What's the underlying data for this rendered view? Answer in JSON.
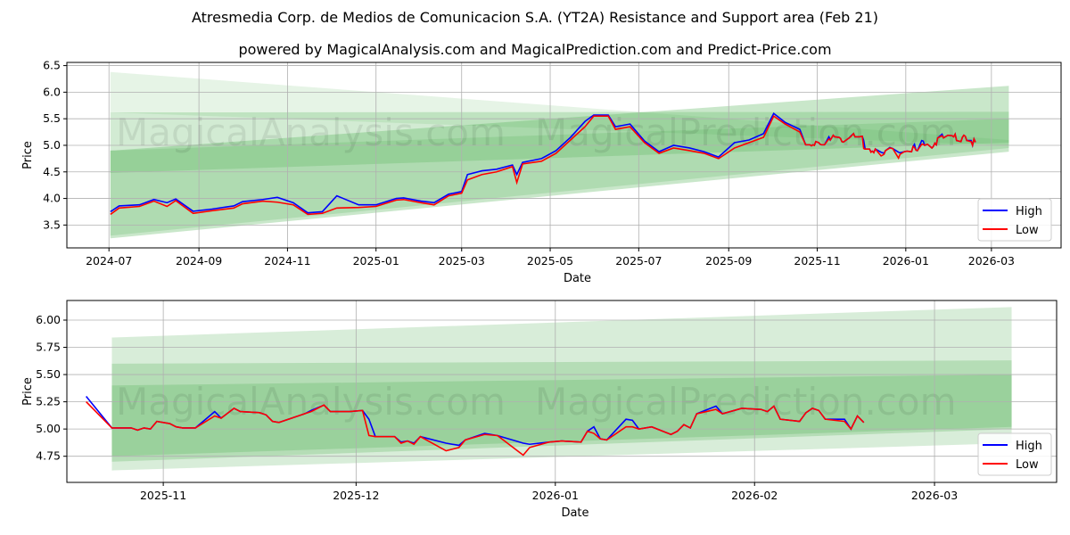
{
  "title": "Atresmedia Corp. de Medios de Comunicacion S.A. (YT2A) Resistance and Support area (Feb 21)",
  "subtitle": "powered by MagicalAnalysis.com and MagicalPrediction.com and Predict-Price.com",
  "watermarks": [
    "MagicalAnalysis.com",
    "MagicalPrediction.com"
  ],
  "colors": {
    "high": "#0000ff",
    "low": "#ff0000",
    "band": "#4caf50"
  },
  "chart_data": [
    {
      "type": "line",
      "xlabel": "Date",
      "ylabel": "Price",
      "xlim": [
        "2024-06-02",
        "2026-04-18"
      ],
      "ylim": [
        3.07,
        6.56
      ],
      "yticks": [
        "3.5",
        "4.0",
        "4.5",
        "5.0",
        "5.5",
        "6.0",
        "6.5"
      ],
      "xticks": [
        "2024-07",
        "2024-09",
        "2024-11",
        "2025-01",
        "2025-03",
        "2025-05",
        "2025-07",
        "2025-09",
        "2025-11",
        "2026-01",
        "2026-03"
      ],
      "legend": {
        "position": "lower-right",
        "entries": [
          "High",
          "Low"
        ]
      },
      "bands": [
        {
          "start": "2024-07-02",
          "end": "2026-03-13",
          "start_range": [
            5.62,
            6.38
          ],
          "end_range": [
            5.0,
            5.1
          ],
          "alpha": 0.14
        },
        {
          "start": "2024-07-02",
          "end": "2026-03-13",
          "start_range": [
            3.25,
            4.9
          ],
          "end_range": [
            4.88,
            6.12
          ],
          "alpha": 0.3
        },
        {
          "start": "2024-07-02",
          "end": "2026-03-13",
          "start_range": [
            4.48,
            5.62
          ],
          "end_range": [
            5.05,
            5.63
          ],
          "alpha": 0.25
        },
        {
          "start": "2024-07-02",
          "end": "2026-03-13",
          "start_range": [
            3.3,
            4.9
          ],
          "end_range": [
            4.95,
            5.5
          ],
          "alpha": 0.2
        }
      ]
    },
    {
      "type": "line",
      "xlabel": "Date",
      "ylabel": "Price",
      "xlim": [
        "2025-10-17",
        "2026-03-20"
      ],
      "ylim": [
        4.51,
        6.18
      ],
      "yticks": [
        "4.75",
        "5.00",
        "5.25",
        "5.50",
        "5.75",
        "6.00"
      ],
      "xticks": [
        "2025-11",
        "2025-12",
        "2026-01",
        "2026-02",
        "2026-03"
      ],
      "legend": {
        "position": "lower-right",
        "entries": [
          "High",
          "Low"
        ]
      },
      "bands": [
        {
          "start": "2025-10-24",
          "end": "2026-03-13",
          "start_range": [
            4.62,
            5.84
          ],
          "end_range": [
            4.87,
            6.12
          ],
          "alpha": 0.22
        },
        {
          "start": "2025-10-24",
          "end": "2026-03-13",
          "start_range": [
            4.7,
            5.6
          ],
          "end_range": [
            5.0,
            5.63
          ],
          "alpha": 0.25
        },
        {
          "start": "2025-10-24",
          "end": "2026-03-13",
          "start_range": [
            4.75,
            5.4
          ],
          "end_range": [
            5.02,
            5.5
          ],
          "alpha": 0.25
        }
      ]
    }
  ],
  "series": {
    "dates": [
      "2024-07-02",
      "2024-07-08",
      "2024-07-22",
      "2024-08-01",
      "2024-08-10",
      "2024-08-16",
      "2024-08-28",
      "2024-09-10",
      "2024-09-25",
      "2024-10-01",
      "2024-10-15",
      "2024-10-25",
      "2024-11-05",
      "2024-11-15",
      "2024-11-25",
      "2024-12-05",
      "2024-12-20",
      "2025-01-01",
      "2025-01-15",
      "2025-01-20",
      "2025-02-01",
      "2025-02-10",
      "2025-02-20",
      "2025-03-01",
      "2025-03-05",
      "2025-03-15",
      "2025-03-25",
      "2025-04-05",
      "2025-04-08",
      "2025-04-12",
      "2025-04-25",
      "2025-05-05",
      "2025-05-15",
      "2025-05-25",
      "2025-05-31",
      "2025-06-10",
      "2025-06-15",
      "2025-06-25",
      "2025-07-05",
      "2025-07-15",
      "2025-07-25",
      "2025-08-05",
      "2025-08-15",
      "2025-08-25",
      "2025-09-05",
      "2025-09-15",
      "2025-09-25",
      "2025-10-02",
      "2025-10-10",
      "2025-10-20",
      "2025-10-24",
      "2025-10-27",
      "2025-10-28",
      "2025-10-29",
      "2025-10-30",
      "2025-10-31",
      "2025-11-02",
      "2025-11-03",
      "2025-11-04",
      "2025-11-06",
      "2025-11-09",
      "2025-11-10",
      "2025-11-12",
      "2025-11-13",
      "2025-11-16",
      "2025-11-17",
      "2025-11-18",
      "2025-11-19",
      "2025-11-23",
      "2025-11-24",
      "2025-11-26",
      "2025-11-27",
      "2025-11-30",
      "2025-12-02",
      "2025-12-03",
      "2025-12-04",
      "2025-12-07",
      "2025-12-08",
      "2025-12-09",
      "2025-12-10",
      "2025-12-11",
      "2025-12-15",
      "2025-12-17",
      "2025-12-18",
      "2025-12-21",
      "2025-12-23",
      "2025-12-27",
      "2025-12-28",
      "2025-12-31",
      "2026-01-02",
      "2026-01-05",
      "2026-01-06",
      "2026-01-07",
      "2026-01-08",
      "2026-01-09",
      "2026-01-12",
      "2026-01-13",
      "2026-01-14",
      "2026-01-16",
      "2026-01-19",
      "2026-01-20",
      "2026-01-21",
      "2026-01-22",
      "2026-01-23",
      "2026-01-26",
      "2026-01-27",
      "2026-01-30",
      "2026-02-02",
      "2026-02-03",
      "2026-02-04",
      "2026-02-05",
      "2026-02-08",
      "2026-02-09",
      "2026-02-10",
      "2026-02-11",
      "2026-02-12",
      "2026-02-15",
      "2026-02-16",
      "2026-02-17",
      "2026-02-18"
    ],
    "low": [
      3.7,
      3.82,
      3.85,
      3.95,
      3.85,
      3.96,
      3.72,
      3.77,
      3.82,
      3.9,
      3.95,
      3.93,
      3.88,
      3.7,
      3.72,
      3.82,
      3.83,
      3.85,
      3.97,
      3.98,
      3.92,
      3.88,
      4.05,
      4.1,
      4.35,
      4.45,
      4.5,
      4.6,
      4.3,
      4.65,
      4.7,
      4.85,
      5.1,
      5.35,
      5.55,
      5.55,
      5.3,
      5.35,
      5.05,
      4.85,
      4.95,
      4.9,
      4.85,
      4.75,
      4.95,
      5.05,
      5.15,
      5.55,
      5.4,
      5.25,
      5.01,
      5.01,
      4.99,
      5.01,
      5.0,
      5.07,
      5.05,
      5.02,
      5.01,
      5.01,
      5.12,
      5.1,
      5.19,
      5.16,
      5.15,
      5.13,
      5.07,
      5.06,
      5.14,
      5.16,
      5.22,
      5.16,
      5.16,
      5.17,
      4.94,
      4.93,
      4.93,
      4.87,
      4.89,
      4.86,
      4.93,
      4.8,
      4.83,
      4.9,
      4.95,
      4.94,
      4.76,
      4.83,
      4.88,
      4.89,
      4.88,
      4.98,
      4.96,
      4.91,
      4.9,
      5.02,
      5.02,
      5.0,
      5.02,
      4.95,
      4.98,
      5.04,
      5.01,
      5.14,
      5.18,
      5.14,
      5.19,
      5.18,
      5.16,
      5.21,
      5.09,
      5.07,
      5.15,
      5.19,
      5.17,
      5.09,
      5.07,
      5.0,
      5.12,
      5.06
    ],
    "high": [
      3.75,
      3.86,
      3.88,
      3.98,
      3.92,
      3.99,
      3.76,
      3.8,
      3.86,
      3.94,
      3.98,
      4.02,
      3.92,
      3.73,
      3.75,
      4.05,
      3.88,
      3.88,
      4.0,
      4.01,
      3.95,
      3.92,
      4.08,
      4.13,
      4.45,
      4.52,
      4.55,
      4.63,
      4.45,
      4.68,
      4.75,
      4.9,
      5.15,
      5.45,
      5.57,
      5.57,
      5.35,
      5.4,
      5.08,
      4.88,
      5.0,
      4.95,
      4.88,
      4.78,
      5.05,
      5.1,
      5.22,
      5.6,
      5.43,
      5.3,
      5.01,
      5.01,
      4.99,
      5.01,
      5.0,
      5.07,
      5.05,
      5.02,
      5.01,
      5.01,
      5.16,
      5.1,
      5.19,
      5.16,
      5.15,
      5.13,
      5.07,
      5.06,
      5.14,
      5.17,
      5.22,
      5.16,
      5.16,
      5.17,
      5.09,
      4.93,
      4.93,
      4.88,
      4.89,
      4.87,
      4.93,
      4.87,
      4.85,
      4.9,
      4.96,
      4.94,
      4.87,
      4.86,
      4.88,
      4.89,
      4.88,
      4.98,
      5.02,
      4.91,
      4.9,
      5.09,
      5.08,
      5.0,
      5.02,
      4.95,
      4.98,
      5.04,
      5.01,
      5.14,
      5.21,
      5.14,
      5.19,
      5.18,
      5.16,
      5.21,
      5.09,
      5.07,
      5.15,
      5.19,
      5.17,
      5.09,
      5.09,
      5.0,
      5.12,
      5.06
    ]
  }
}
